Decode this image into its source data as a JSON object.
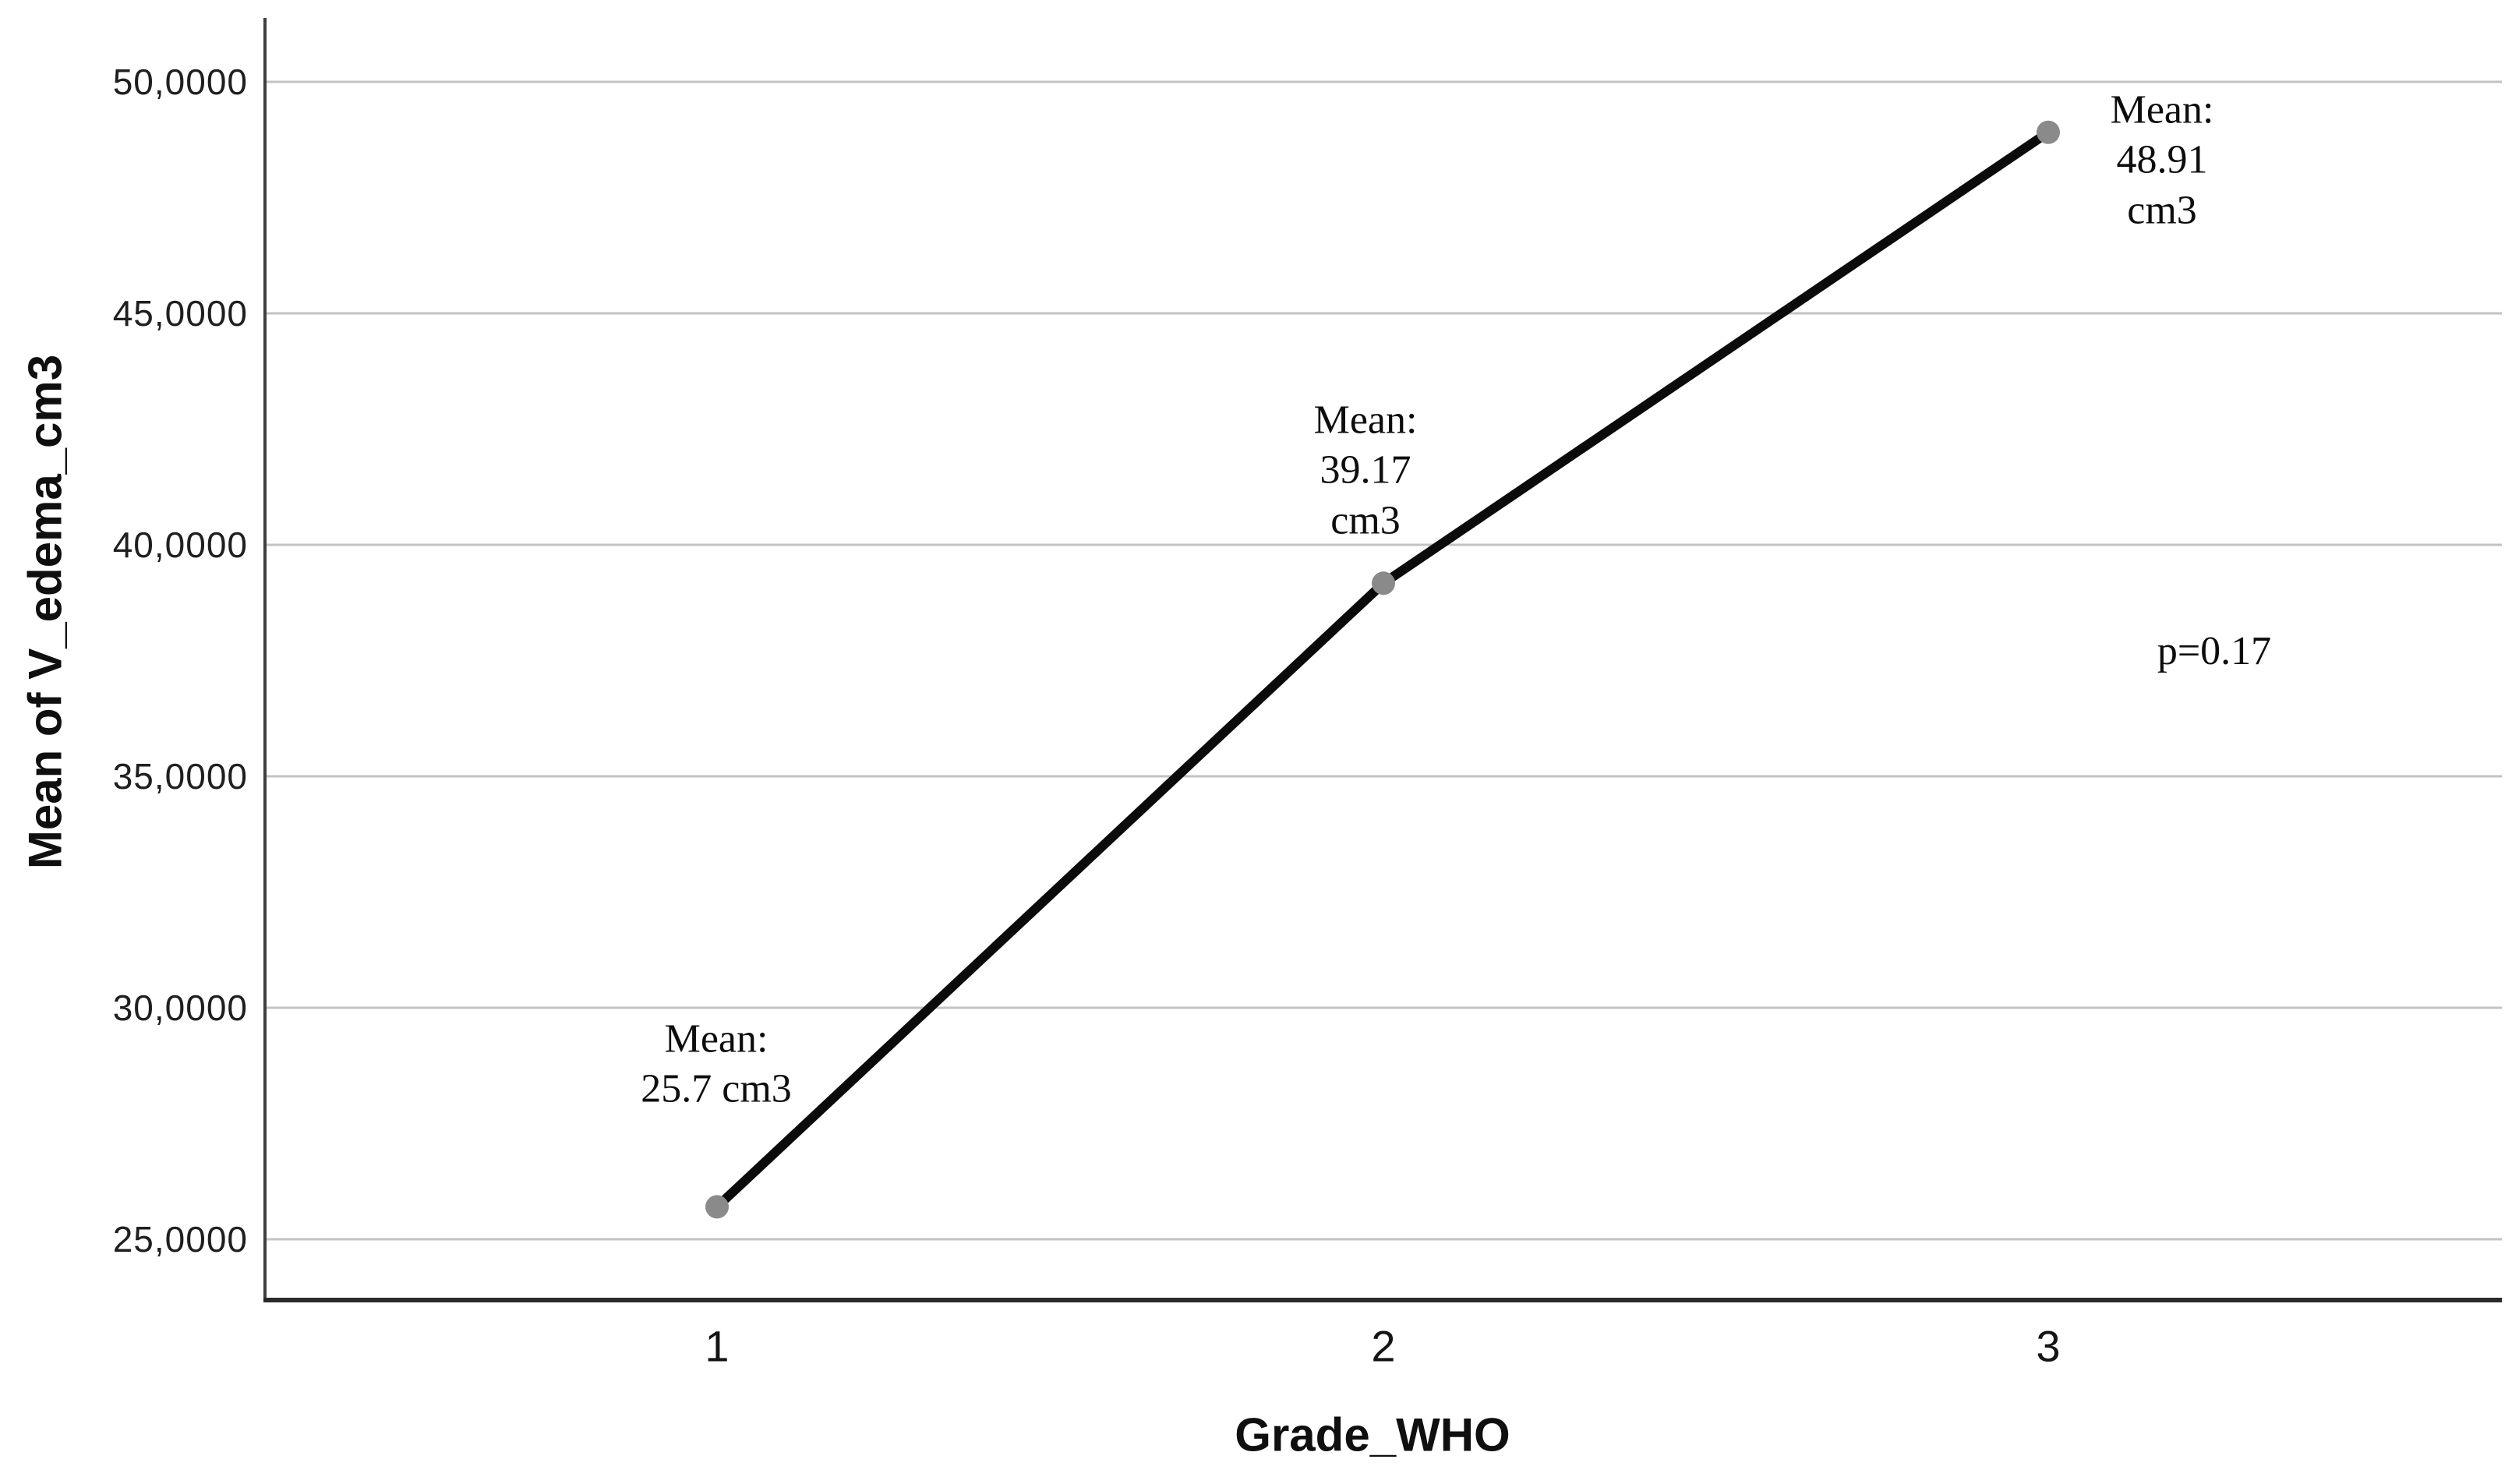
{
  "chart_data": {
    "type": "line",
    "title": "",
    "xlabel": "Grade_WHO",
    "ylabel": "Mean of V_edema_cm3",
    "categories": [
      "1",
      "2",
      "3"
    ],
    "series": [
      {
        "name": "Mean of V_edema_cm3",
        "values": [
          25.7,
          39.17,
          48.91
        ]
      }
    ],
    "y_ticks": [
      {
        "value": 25,
        "label": "25,0000"
      },
      {
        "value": 30,
        "label": "30,0000"
      },
      {
        "value": 35,
        "label": "35,0000"
      },
      {
        "value": 40,
        "label": "40,0000"
      },
      {
        "value": 45,
        "label": "45,0000"
      },
      {
        "value": 50,
        "label": "50,0000"
      }
    ],
    "ylim": [
      23.7,
      51.4
    ],
    "grid": "horizontal-only",
    "legend": "none",
    "annotations": [
      {
        "text": "Mean:\n25.7 cm3",
        "point_index": 0
      },
      {
        "text": "Mean:\n39.17\ncm3",
        "point_index": 1
      },
      {
        "text": "Mean:\n48.91\ncm3",
        "point_index": 2
      },
      {
        "text": "p=0.17",
        "point_index": null
      }
    ],
    "colors": {
      "line": "#0b0b0b",
      "marker": "#8a8a8a",
      "gridline": "#c3c3c3",
      "y_axis": "#3f3f3f",
      "x_axis": "#2a2a2a",
      "background": "#ffffff"
    }
  }
}
